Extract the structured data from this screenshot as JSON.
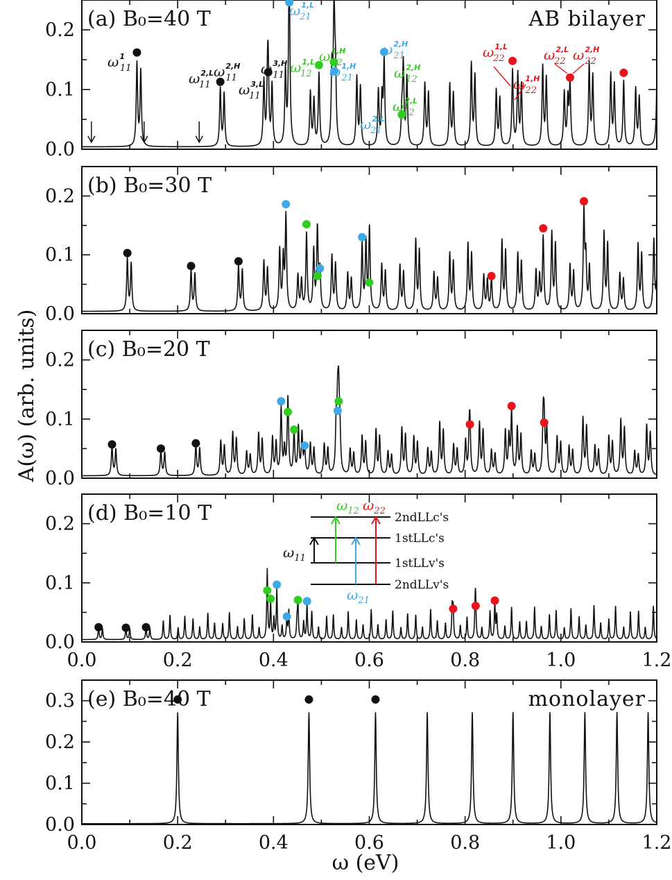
{
  "colors": {
    "intra_11": "#111111",
    "inter_21": "#3fa9e8",
    "inter_12": "#33cc22",
    "intra_22": "#e8151a",
    "line": "#111111"
  },
  "axes": {
    "ylabel": "A(ω)  (arb. units)",
    "xlabel": "ω  (eV)",
    "xlim": [
      0.0,
      1.2
    ],
    "xticks": [
      "0.0",
      "0.2",
      "0.4",
      "0.6",
      "0.8",
      "1.0",
      "1.2"
    ]
  },
  "chart_data": [
    {
      "type": "line",
      "panel": "(a)",
      "title": "B₀=40  T",
      "system": "AB  bilayer",
      "ylim": [
        0,
        0.25
      ],
      "yticks": [
        "0.0",
        "0.1",
        "0.2"
      ],
      "markers": [
        {
          "x": 0.115,
          "y": 0.162,
          "series": "11"
        },
        {
          "x": 0.289,
          "y": 0.113,
          "series": "11"
        },
        {
          "x": 0.389,
          "y": 0.129,
          "series": "11"
        },
        {
          "x": 0.433,
          "y": 0.246,
          "series": "21"
        },
        {
          "x": 0.495,
          "y": 0.141,
          "series": "12"
        },
        {
          "x": 0.526,
          "y": 0.146,
          "series": "12"
        },
        {
          "x": 0.527,
          "y": 0.131,
          "series": "21"
        },
        {
          "x": 0.631,
          "y": 0.163,
          "series": "21"
        },
        {
          "x": 0.668,
          "y": 0.058,
          "series": "12"
        },
        {
          "x": 0.899,
          "y": 0.148,
          "series": "22"
        },
        {
          "x": 1.019,
          "y": 0.12,
          "series": "22"
        },
        {
          "x": 1.131,
          "y": 0.128,
          "series": "22"
        }
      ],
      "arrows_x": [
        0.02,
        0.13,
        0.245
      ],
      "annotations": [
        {
          "sym": "ω",
          "sup": "1",
          "sub": "11",
          "color": "intra_11"
        },
        {
          "sym": "ω",
          "sup": "2,L",
          "sub": "11",
          "color": "intra_11"
        },
        {
          "sym": "ω",
          "sup": "2,H",
          "sub": "11",
          "color": "intra_11"
        },
        {
          "sym": "ω",
          "sup": "3,L",
          "sub": "11",
          "color": "intra_11"
        },
        {
          "sym": "ω",
          "sup": "3,H",
          "sub": "11",
          "color": "intra_11"
        },
        {
          "sym": "ω",
          "sup": "1,L",
          "sub": "21",
          "color": "inter_21"
        },
        {
          "sym": "ω",
          "sup": "1,L",
          "sub": "12",
          "color": "inter_12"
        },
        {
          "sym": "ω",
          "sup": "1,H",
          "sub": "12",
          "color": "inter_12"
        },
        {
          "sym": "ω",
          "sup": "1,H",
          "sub": "21",
          "color": "inter_21"
        },
        {
          "sym": "ω",
          "sup": "2,H",
          "sub": "21",
          "color": "inter_21"
        },
        {
          "sym": "ω",
          "sup": "2,H",
          "sub": "12",
          "color": "inter_12"
        },
        {
          "sym": "ω",
          "sup": "2,L",
          "sub": "12",
          "color": "inter_12"
        },
        {
          "sym": "ω",
          "sup": "2,L",
          "sub": "21",
          "color": "inter_21"
        },
        {
          "sym": "ω",
          "sup": "1,L",
          "sub": "22",
          "color": "intra_22"
        },
        {
          "sym": "ω",
          "sup": "1,H",
          "sub": "22",
          "color": "intra_22"
        },
        {
          "sym": "ω",
          "sup": "2,L",
          "sub": "22",
          "color": "intra_22"
        },
        {
          "sym": "ω",
          "sup": "2,H",
          "sub": "22",
          "color": "intra_22"
        }
      ]
    },
    {
      "type": "line",
      "panel": "(b)",
      "title": "B₀=30  T",
      "ylim": [
        0,
        0.25
      ],
      "yticks": [
        "0.0",
        "0.1",
        "0.2"
      ],
      "markers": [
        {
          "x": 0.095,
          "y": 0.103,
          "series": "11"
        },
        {
          "x": 0.228,
          "y": 0.081,
          "series": "11"
        },
        {
          "x": 0.327,
          "y": 0.089,
          "series": "11"
        },
        {
          "x": 0.426,
          "y": 0.186,
          "series": "21"
        },
        {
          "x": 0.469,
          "y": 0.152,
          "series": "12"
        },
        {
          "x": 0.492,
          "y": 0.064,
          "series": "12"
        },
        {
          "x": 0.497,
          "y": 0.077,
          "series": "21"
        },
        {
          "x": 0.585,
          "y": 0.13,
          "series": "21"
        },
        {
          "x": 0.6,
          "y": 0.053,
          "series": "12"
        },
        {
          "x": 0.855,
          "y": 0.064,
          "series": "22"
        },
        {
          "x": 0.963,
          "y": 0.145,
          "series": "22"
        },
        {
          "x": 1.048,
          "y": 0.191,
          "series": "22"
        }
      ]
    },
    {
      "type": "line",
      "panel": "(c)",
      "title": "B₀=20  T",
      "ylim": [
        0,
        0.25
      ],
      "yticks": [
        "0.0",
        "0.1",
        "0.2"
      ],
      "markers": [
        {
          "x": 0.063,
          "y": 0.057,
          "series": "11"
        },
        {
          "x": 0.165,
          "y": 0.05,
          "series": "11"
        },
        {
          "x": 0.238,
          "y": 0.059,
          "series": "11"
        },
        {
          "x": 0.416,
          "y": 0.13,
          "series": "21"
        },
        {
          "x": 0.43,
          "y": 0.112,
          "series": "12"
        },
        {
          "x": 0.443,
          "y": 0.082,
          "series": "12"
        },
        {
          "x": 0.465,
          "y": 0.055,
          "series": "21"
        },
        {
          "x": 0.536,
          "y": 0.13,
          "series": "12"
        },
        {
          "x": 0.534,
          "y": 0.114,
          "series": "21"
        },
        {
          "x": 0.81,
          "y": 0.091,
          "series": "22"
        },
        {
          "x": 0.897,
          "y": 0.122,
          "series": "22"
        },
        {
          "x": 0.965,
          "y": 0.094,
          "series": "22"
        }
      ]
    },
    {
      "type": "line",
      "panel": "(d)",
      "title": "B₀=10  T",
      "ylim": [
        0,
        0.25
      ],
      "yticks": [
        "0.0",
        "0.1",
        "0.2"
      ],
      "markers": [
        {
          "x": 0.035,
          "y": 0.025,
          "series": "11"
        },
        {
          "x": 0.092,
          "y": 0.024,
          "series": "11"
        },
        {
          "x": 0.134,
          "y": 0.025,
          "series": "11"
        },
        {
          "x": 0.387,
          "y": 0.087,
          "series": "12"
        },
        {
          "x": 0.394,
          "y": 0.073,
          "series": "12"
        },
        {
          "x": 0.407,
          "y": 0.097,
          "series": "21"
        },
        {
          "x": 0.428,
          "y": 0.043,
          "series": "21"
        },
        {
          "x": 0.451,
          "y": 0.071,
          "series": "12"
        },
        {
          "x": 0.47,
          "y": 0.069,
          "series": "21"
        },
        {
          "x": 0.775,
          "y": 0.056,
          "series": "22"
        },
        {
          "x": 0.822,
          "y": 0.061,
          "series": "22"
        },
        {
          "x": 0.862,
          "y": 0.07,
          "series": "22"
        }
      ],
      "inset": {
        "levels": [
          "2ndLLc's",
          "1stLLc's",
          "1stLLv's",
          "2ndLLv's"
        ],
        "labels": [
          {
            "sym": "ω",
            "sub": "11",
            "color": "intra_11"
          },
          {
            "sym": "ω",
            "sub": "12",
            "color": "inter_12"
          },
          {
            "sym": "ω",
            "sub": "22",
            "color": "intra_22"
          },
          {
            "sym": "ω",
            "sub": "21",
            "color": "inter_21"
          }
        ]
      }
    },
    {
      "type": "line",
      "panel": "(e)",
      "title": "B₀=40  T",
      "system": "monolayer",
      "ylim": [
        0,
        0.35
      ],
      "yticks": [
        "0.0",
        "0.1",
        "0.2",
        "0.3"
      ],
      "markers": [
        {
          "x": 0.2,
          "y": 0.303,
          "series": "11"
        },
        {
          "x": 0.474,
          "y": 0.303,
          "series": "11"
        },
        {
          "x": 0.613,
          "y": 0.303,
          "series": "11"
        }
      ]
    }
  ]
}
